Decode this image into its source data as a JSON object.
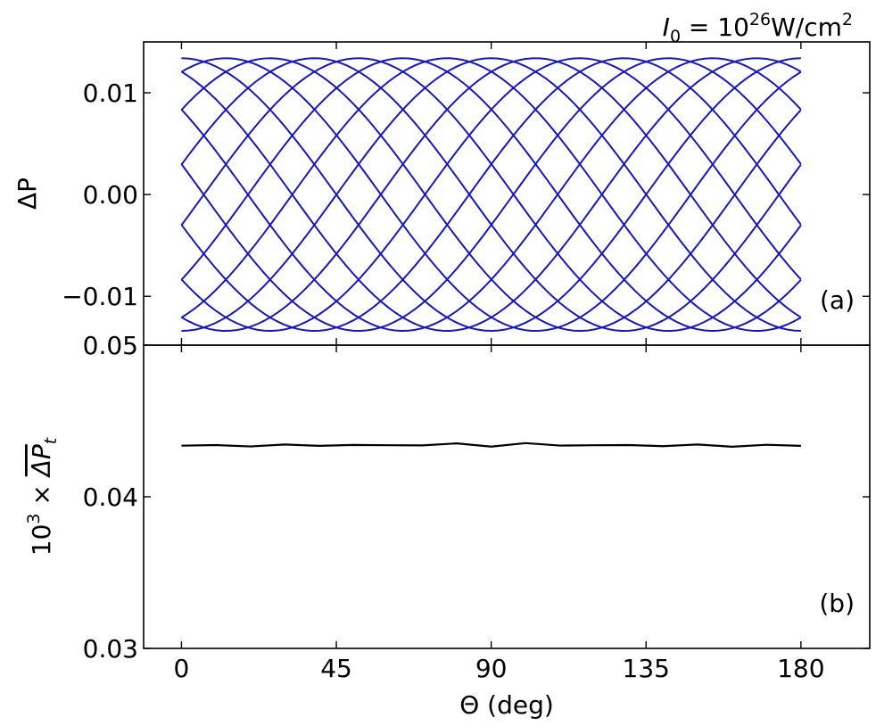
{
  "figure_title": {
    "symbol": "I",
    "subscript": "0",
    "equals": " = 10",
    "exponent": "26",
    "units": "W/cm",
    "units_exponent": "2"
  },
  "x_axis": {
    "label": "Θ (deg)",
    "range": [
      -11,
      200
    ],
    "ticks": [
      0,
      45,
      90,
      135,
      180
    ],
    "tick_labels": [
      "0",
      "45",
      "90",
      "135",
      "180"
    ]
  },
  "chart_data": [
    {
      "panel": "(a)",
      "type": "line",
      "title": "",
      "xlabel": "Θ (deg)",
      "ylabel": "ΔP",
      "xlim": [
        -11,
        200
      ],
      "ylim": [
        -0.0148,
        0.015
      ],
      "yticks": [
        -0.01,
        0.0,
        0.01
      ],
      "ytick_labels": [
        "−0.01",
        "0.00",
        "0.01"
      ],
      "grid": false,
      "color": "#1818b8",
      "amplitude": 0.0134,
      "x_start": 0,
      "x_end": 180,
      "num_points": 91,
      "series_count": 14,
      "phase_step_deg": 25.7,
      "period_deg": 180,
      "description": "Family of 14 phase-shifted sinusoidal curves ΔP = A·cos(2Θ + φk), forming a lattice pattern"
    },
    {
      "panel": "(b)",
      "type": "line",
      "title": "",
      "xlabel": "Θ (deg)",
      "ylabel_prefix": "10",
      "ylabel_exponent": "3",
      "ylabel_times": " × ",
      "ylabel_symbol": "ΔP",
      "ylabel_subscript": "t",
      "xlim": [
        -11,
        200
      ],
      "ylim": [
        0.03,
        0.05
      ],
      "yticks": [
        0.03,
        0.04,
        0.05
      ],
      "ytick_labels": [
        "0.03",
        "0.04",
        "0.05"
      ],
      "grid": false,
      "color": "#000000",
      "x": [
        0,
        10,
        20,
        30,
        40,
        50,
        60,
        70,
        80,
        90,
        100,
        110,
        120,
        130,
        140,
        150,
        160,
        170,
        180
      ],
      "y": [
        0.04337,
        0.04341,
        0.04332,
        0.04345,
        0.04336,
        0.04342,
        0.0434,
        0.04339,
        0.04352,
        0.04331,
        0.04354,
        0.04338,
        0.0434,
        0.04341,
        0.04334,
        0.04345,
        0.0433,
        0.04343,
        0.04336
      ]
    }
  ]
}
